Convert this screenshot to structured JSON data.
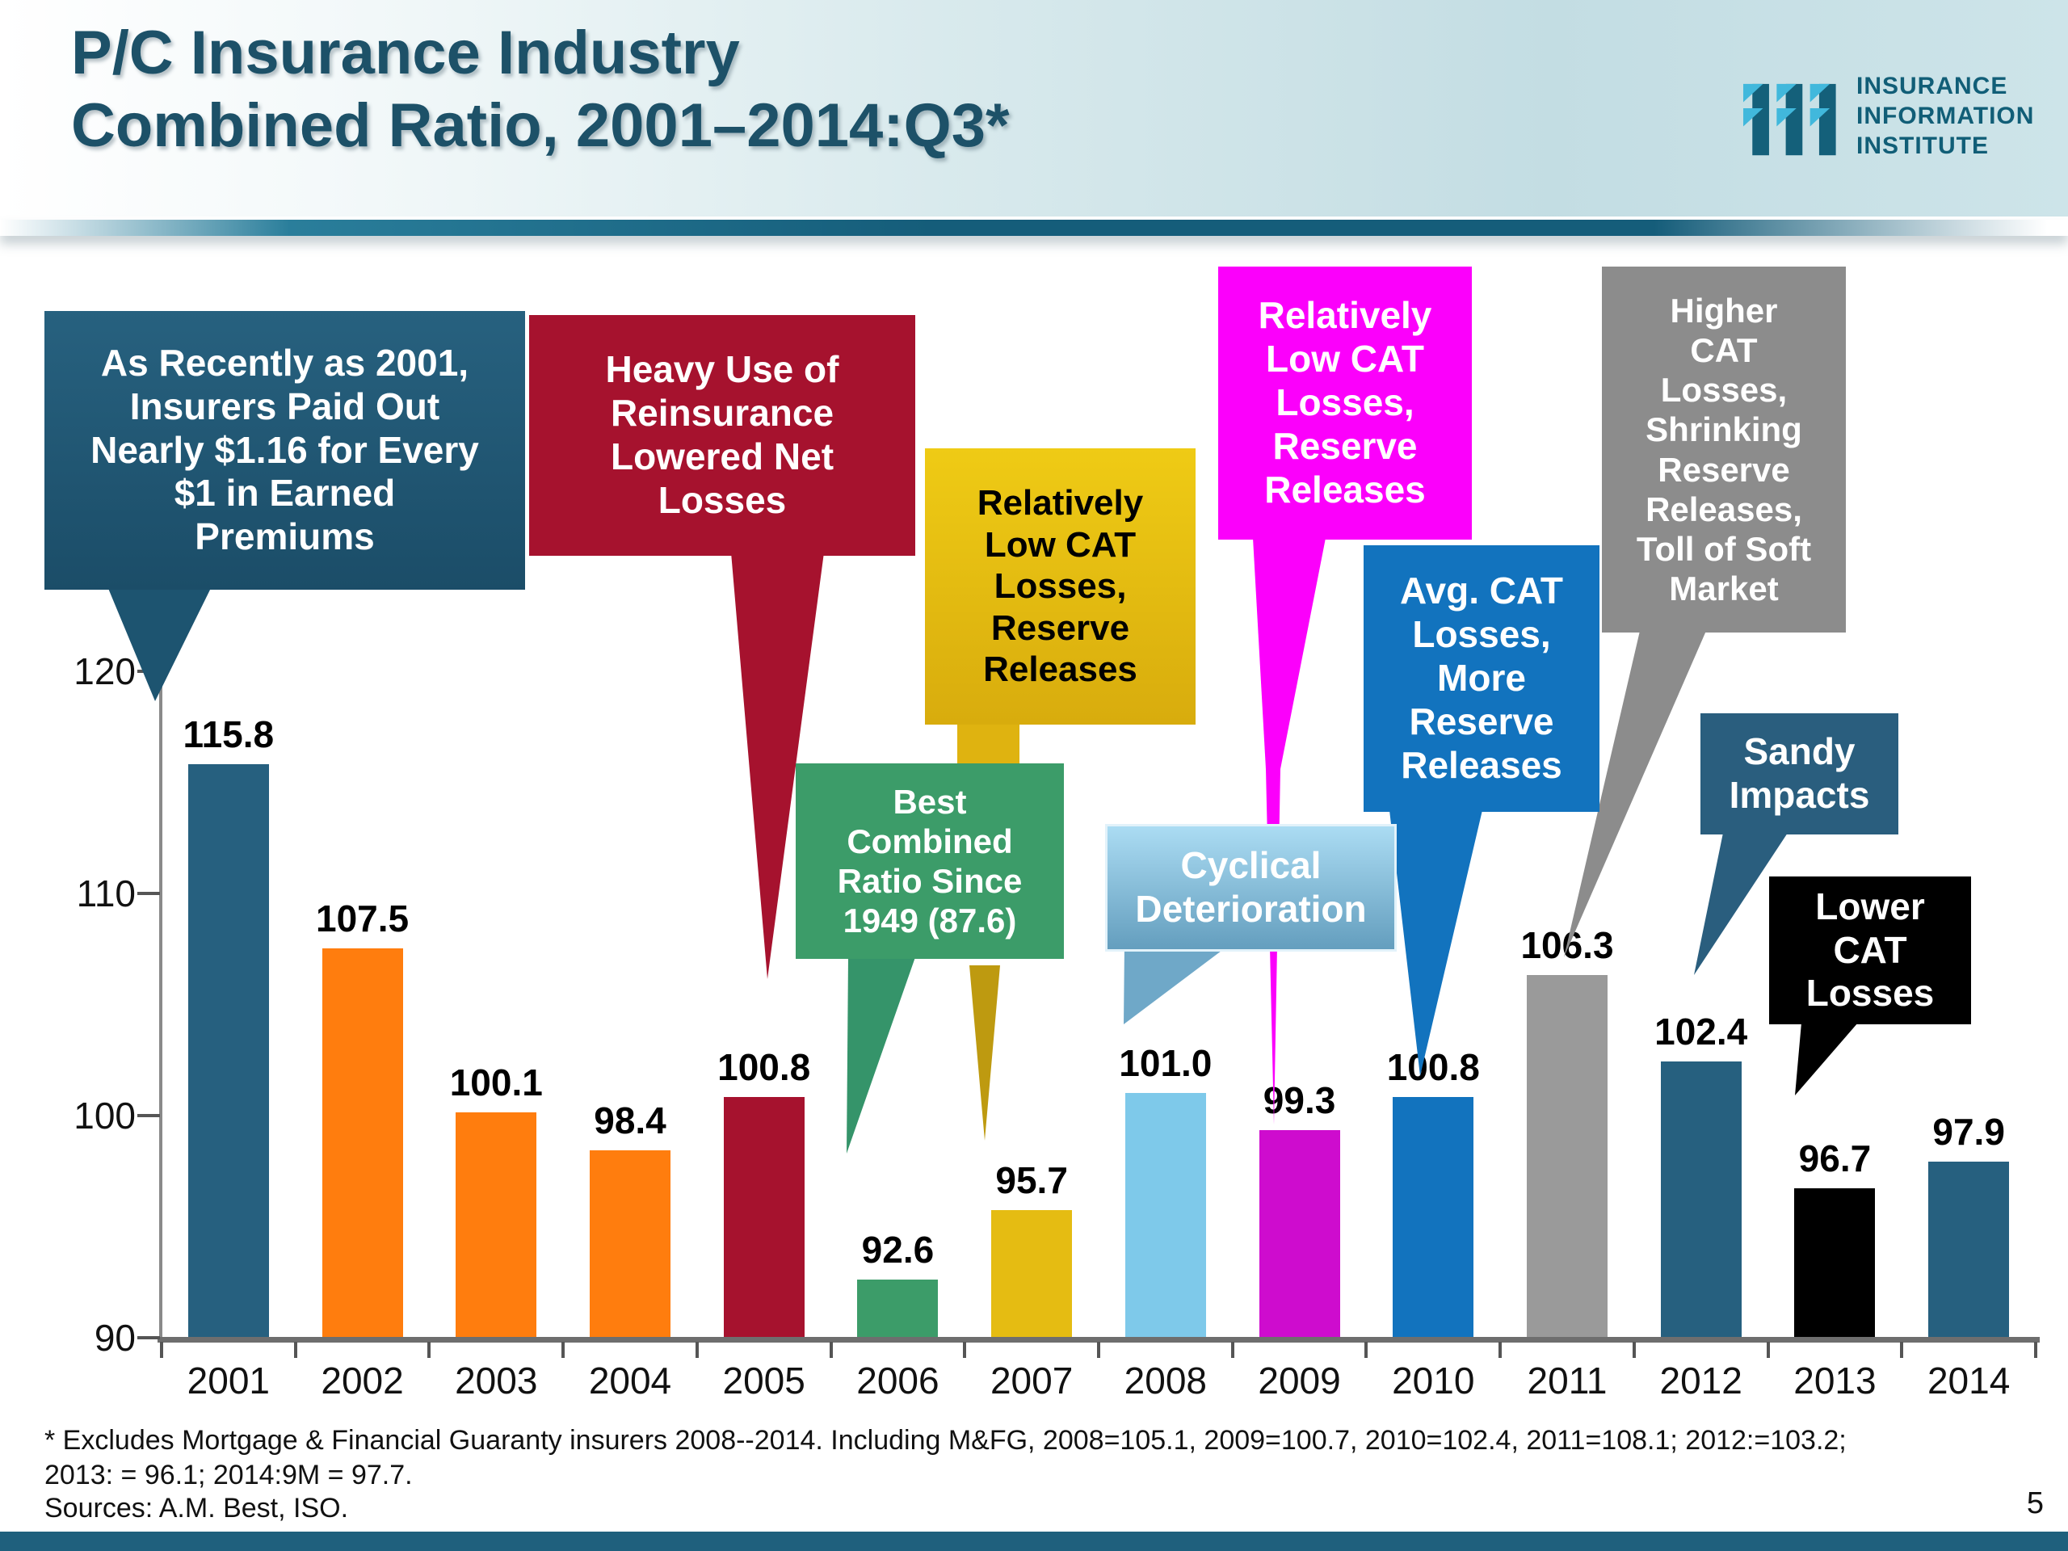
{
  "slide": {
    "title_line1": "P/C Insurance Industry",
    "title_line2": "Combined Ratio, 2001–2014:Q3*",
    "footnote_line1": "* Excludes Mortgage & Financial Guaranty insurers 2008--2014. Including M&FG, 2008=105.1, 2009=100.7, 2010=102.4, 2011=108.1; 2012:=103.2;",
    "footnote_line2": "2013: = 96.1; 2014:9M = 97.7.",
    "sources": "Sources: A.M. Best, ISO.",
    "page_number": "5",
    "accent_color": "#1F607D"
  },
  "logo": {
    "line1": "INSURANCE",
    "line2": "INFORMATION",
    "line3": "INSTITUTE",
    "text_color": "#115E77",
    "dark_color": "#14607A",
    "cyan_color": "#41B8DC"
  },
  "chart_data": {
    "type": "bar",
    "title": "P/C Insurance Industry Combined Ratio, 2001–2014:Q3*",
    "xlabel": "",
    "ylabel": "",
    "ylim": [
      90,
      120
    ],
    "yticks": [
      90,
      100,
      110,
      120
    ],
    "grid": "off",
    "legend": "none",
    "categories": [
      "2001",
      "2002",
      "2003",
      "2004",
      "2005",
      "2006",
      "2007",
      "2008",
      "2009",
      "2010",
      "2011",
      "2012",
      "2013",
      "2014"
    ],
    "values": [
      115.8,
      107.5,
      100.1,
      98.4,
      100.8,
      92.6,
      95.7,
      101.0,
      99.3,
      100.8,
      106.3,
      102.4,
      96.7,
      97.9
    ],
    "value_labels": [
      "115.8",
      "107.5",
      "100.1",
      "98.4",
      "100.8",
      "92.6",
      "95.7",
      "101.0",
      "99.3",
      "100.8",
      "106.3",
      "102.4",
      "96.7",
      "97.9"
    ],
    "bar_colors": [
      "#26607F",
      "#FF7D0E",
      "#FF7D0E",
      "#FF7D0E",
      "#A6122E",
      "#3C9C69",
      "#E5BC12",
      "#7EC9EA",
      "#CE0CCE",
      "#1273BE",
      "#9A9A9A",
      "#26607F",
      "#000000",
      "#26607F"
    ]
  },
  "callouts": [
    {
      "id": "note2001",
      "text": "As Recently as 2001,\nInsurers Paid Out\nNearly $1.16 for Every\n$1 in Earned\nPremiums",
      "bg": "linear-gradient(180deg,#27617F,#1B4D68)",
      "fg": "#FFFFFF",
      "tail_fill": "#1D5470"
    },
    {
      "id": "reinsurance",
      "text": "Heavy Use of\nReinsurance\nLowered Net\nLosses",
      "bg": "#A6122E",
      "fg": "#FFFFFF",
      "tail_fill": "#A6122E"
    },
    {
      "id": "lowcat2007",
      "text": "Relatively\nLow CAT\nLosses,\nReserve\nReleases",
      "bg": "linear-gradient(180deg,#EFCB15,#D8AC0D)",
      "fg": "#000000",
      "tail_fill": "#DFB310"
    },
    {
      "id": "best1949",
      "text": "Best\nCombined\nRatio Since\n1949 (87.6)",
      "bg": "#3C9C69",
      "fg": "#FFFFFF",
      "tail_fill": "#35946A"
    },
    {
      "id": "cyclical",
      "text": "Cyclical\nDeterioration",
      "bg": "linear-gradient(180deg,#ABDCF3,#649EBE)",
      "fg": "#FFFFFF",
      "tail_fill": "#6FA8C8"
    },
    {
      "id": "lowcat2009",
      "text": "Relatively\nLow CAT\nLosses,\nReserve\nReleases",
      "bg": "#FB00FB",
      "fg": "#FFFFFF",
      "tail_fill": "#FB00FB"
    },
    {
      "id": "avgcat",
      "text": "Avg. CAT\nLosses,\nMore\nReserve\nReleases",
      "bg": "#1273BE",
      "fg": "#FFFFFF",
      "tail_fill": "#1273BE"
    },
    {
      "id": "highercat",
      "text": "Higher\nCAT\nLosses,\nShrinking\nReserve\nReleases,\nToll of Soft\nMarket",
      "bg": "#8C8C8C",
      "fg": "#FFFFFF",
      "tail_fill": "#8C8C8C"
    },
    {
      "id": "sandy",
      "text": "Sandy\nImpacts",
      "bg": "#2A5E7E",
      "fg": "#FFFFFF",
      "tail_fill": "#2A5E7E"
    },
    {
      "id": "lowercat",
      "text": "Lower\nCAT\nLosses",
      "bg": "#000000",
      "fg": "#FFFFFF",
      "tail_fill": "#000000"
    }
  ]
}
